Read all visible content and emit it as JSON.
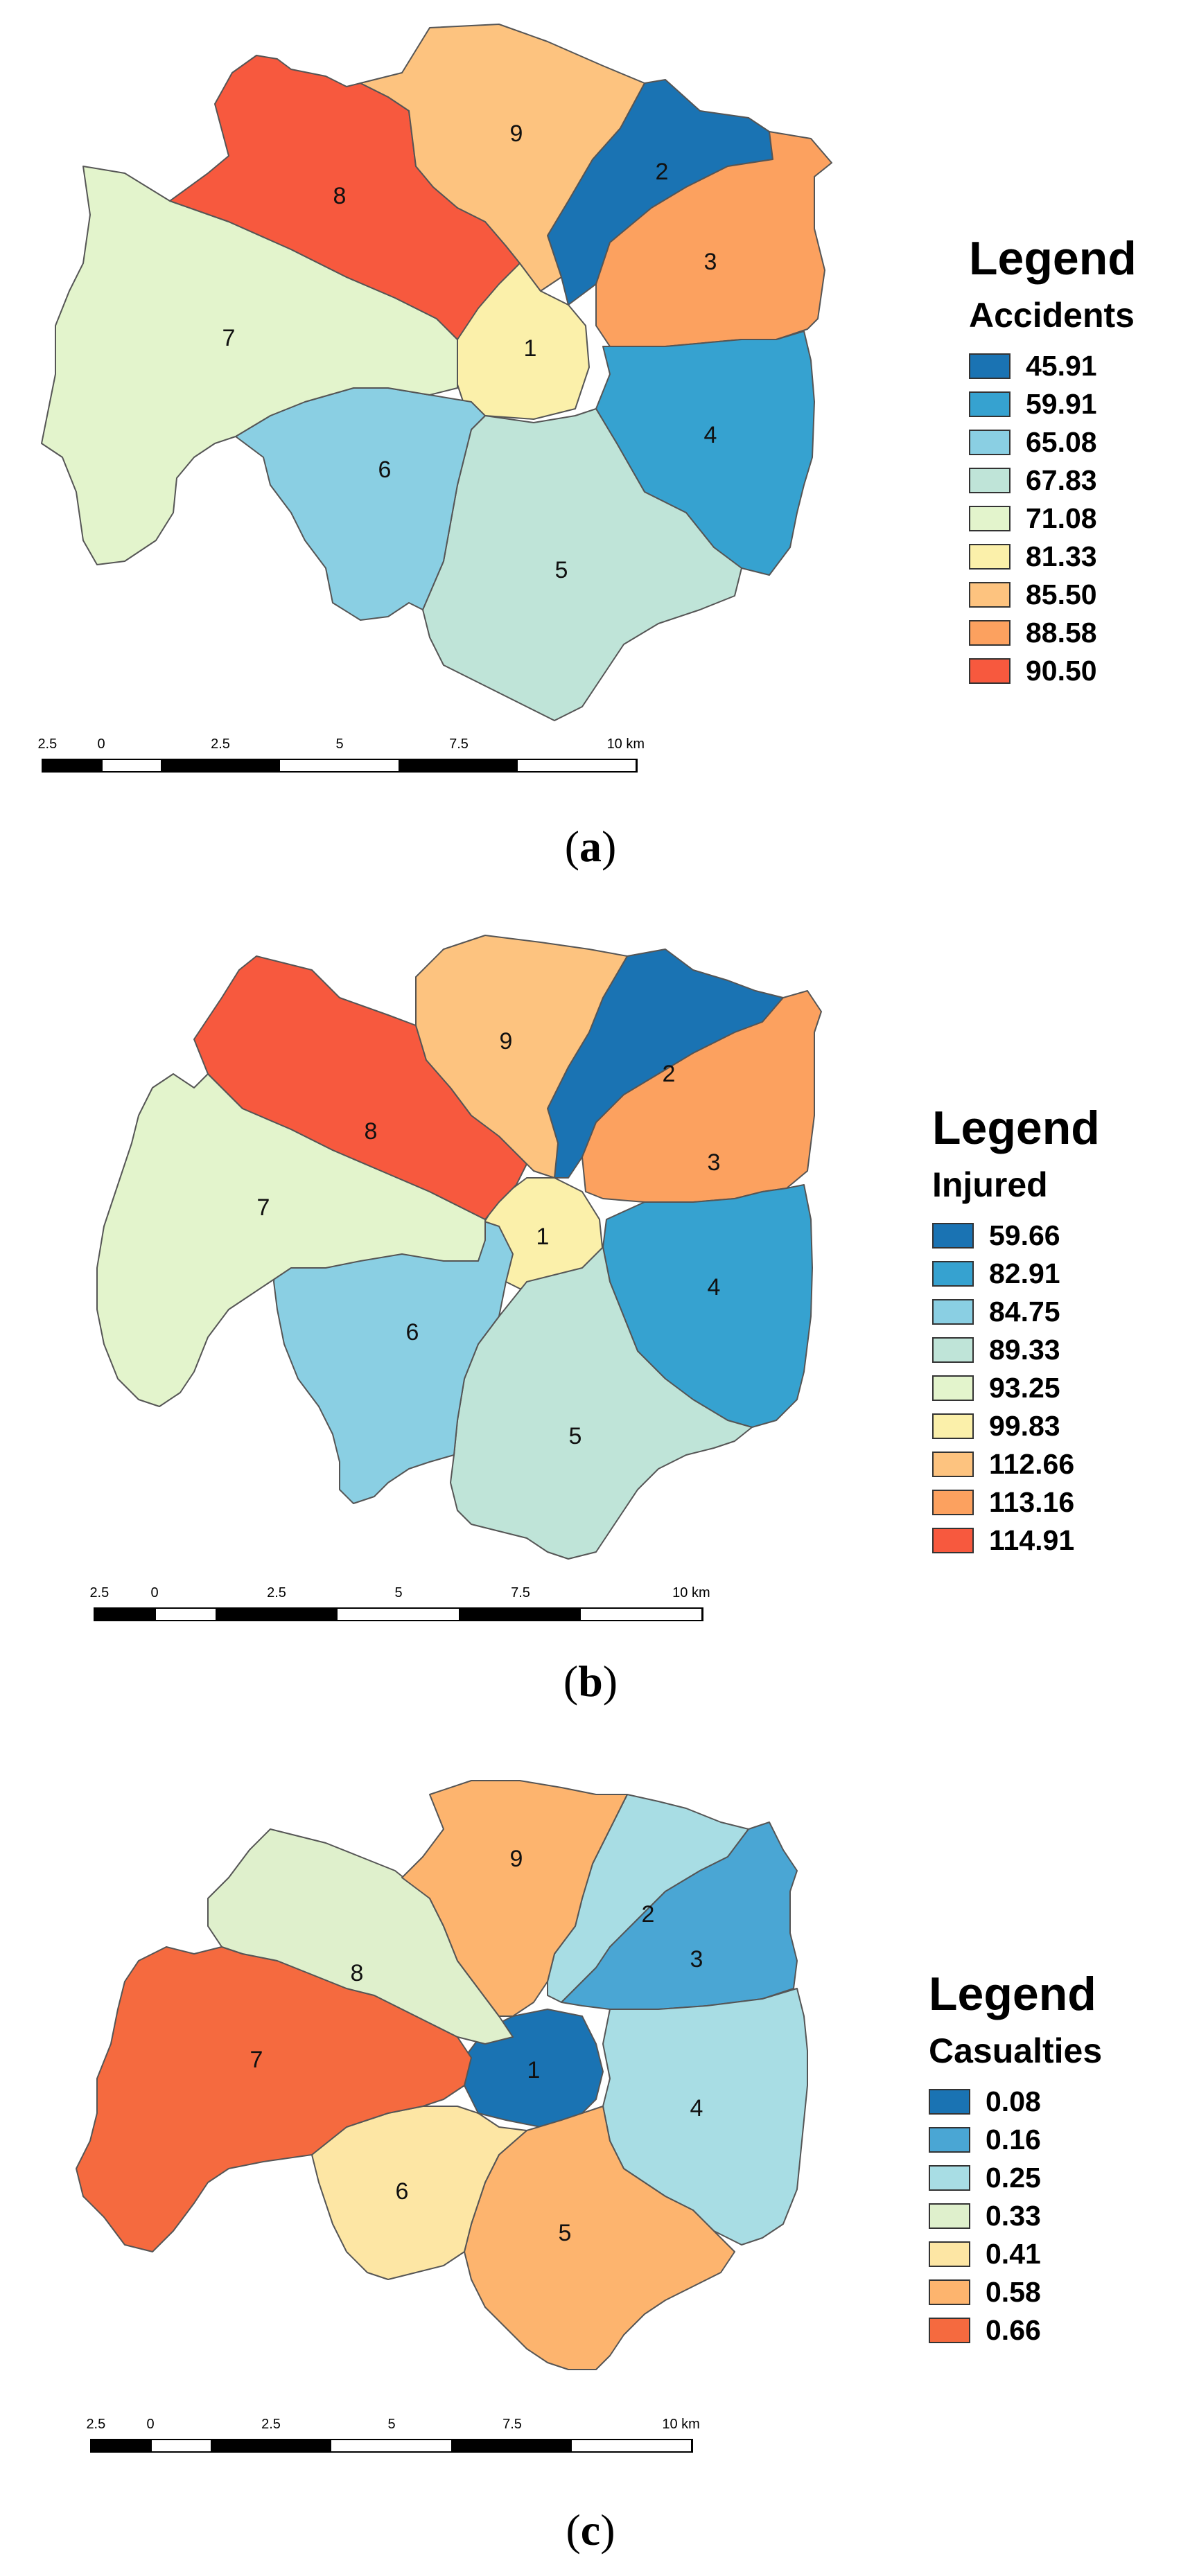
{
  "panels": [
    {
      "id": "a",
      "caption_letter": "a",
      "legend_title": "Legend",
      "variable": "Accidents",
      "legend": [
        {
          "label": "45.91",
          "color": "#1a73b3"
        },
        {
          "label": "59.91",
          "color": "#36a2d0"
        },
        {
          "label": "65.08",
          "color": "#8acfe3"
        },
        {
          "label": "67.83",
          "color": "#bfe4d8"
        },
        {
          "label": "71.08",
          "color": "#e3f4cc"
        },
        {
          "label": "81.33",
          "color": "#fbf0aa"
        },
        {
          "label": "85.50",
          "color": "#fdc37f"
        },
        {
          "label": "88.58",
          "color": "#fca15f"
        },
        {
          "label": "90.50",
          "color": "#f7593e"
        }
      ],
      "districts": [
        {
          "id": "1",
          "value": "81.33"
        },
        {
          "id": "2",
          "value": "45.91"
        },
        {
          "id": "3",
          "value": "88.58"
        },
        {
          "id": "4",
          "value": "59.91"
        },
        {
          "id": "5",
          "value": "67.83"
        },
        {
          "id": "6",
          "value": "65.08"
        },
        {
          "id": "7",
          "value": "71.08"
        },
        {
          "id": "8",
          "value": "90.50"
        },
        {
          "id": "9",
          "value": "85.50"
        }
      ]
    },
    {
      "id": "b",
      "caption_letter": "b",
      "legend_title": "Legend",
      "variable": "Injured",
      "legend": [
        {
          "label": "59.66",
          "color": "#1a73b3"
        },
        {
          "label": "82.91",
          "color": "#36a2d0"
        },
        {
          "label": "84.75",
          "color": "#8acfe3"
        },
        {
          "label": "89.33",
          "color": "#bfe4d8"
        },
        {
          "label": "93.25",
          "color": "#e3f4cc"
        },
        {
          "label": "99.83",
          "color": "#fbf0aa"
        },
        {
          "label": "112.66",
          "color": "#fdc37f"
        },
        {
          "label": "113.16",
          "color": "#fca15f"
        },
        {
          "label": "114.91",
          "color": "#f7593e"
        }
      ],
      "districts": [
        {
          "id": "1",
          "value": "99.83"
        },
        {
          "id": "2",
          "value": "59.66"
        },
        {
          "id": "3",
          "value": "113.16"
        },
        {
          "id": "4",
          "value": "82.91"
        },
        {
          "id": "5",
          "value": "89.33"
        },
        {
          "id": "6",
          "value": "84.75"
        },
        {
          "id": "7",
          "value": "93.25"
        },
        {
          "id": "8",
          "value": "114.91"
        },
        {
          "id": "9",
          "value": "112.66"
        }
      ]
    },
    {
      "id": "c",
      "caption_letter": "c",
      "legend_title": "Legend",
      "variable": "Casualties",
      "legend": [
        {
          "label": "0.08",
          "color": "#1a73b3"
        },
        {
          "label": "0.16",
          "color": "#4aa6d4"
        },
        {
          "label": "0.25",
          "color": "#a8dde4"
        },
        {
          "label": "0.33",
          "color": "#dff0cc"
        },
        {
          "label": "0.41",
          "color": "#fde6a4"
        },
        {
          "label": "0.58",
          "color": "#fdb46e"
        },
        {
          "label": "0.66",
          "color": "#f56a3f"
        }
      ],
      "districts": [
        {
          "id": "1",
          "value": "0.08"
        },
        {
          "id": "2",
          "value": "0.25"
        },
        {
          "id": "3",
          "value": "0.16"
        },
        {
          "id": "4",
          "value": "0.25"
        },
        {
          "id": "5",
          "value": "0.58"
        },
        {
          "id": "6",
          "value": "0.41"
        },
        {
          "id": "7",
          "value": "0.66"
        },
        {
          "id": "8",
          "value": "0.33"
        },
        {
          "id": "9",
          "value": "0.58"
        }
      ]
    }
  ],
  "scale_bar": {
    "ticks": [
      "2.5",
      "0",
      "2.5",
      "5",
      "7.5",
      "10 km"
    ]
  }
}
